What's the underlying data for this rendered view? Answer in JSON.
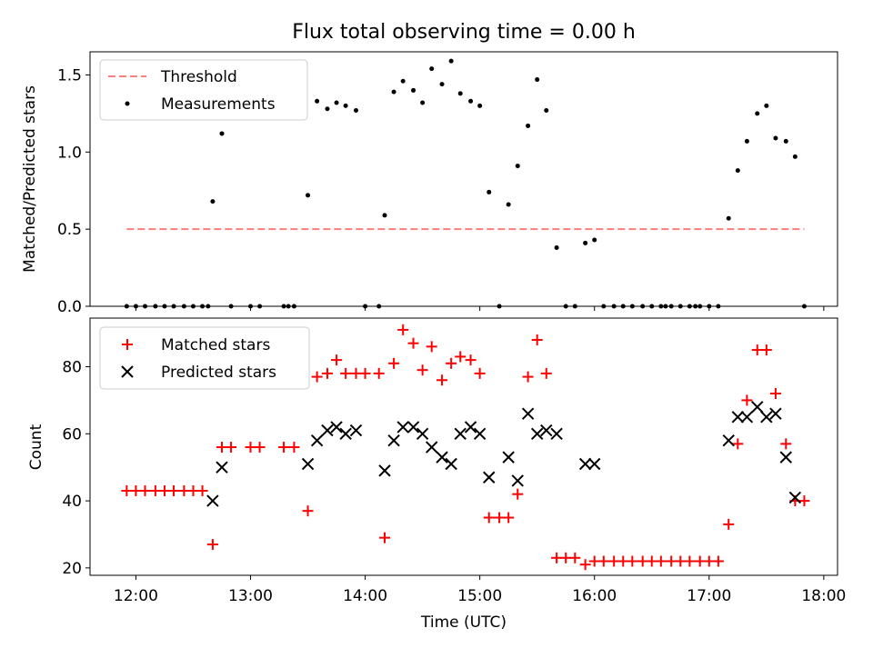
{
  "title": "Flux total observing time = 0.00 h",
  "colors": {
    "threshold": "#ff7f7f",
    "measurements": "#000000",
    "matched": "#ff0000",
    "predicted": "#000000"
  },
  "chart_data": [
    {
      "type": "scatter",
      "panel": "top",
      "ylabel": "Matched/Predicted stars",
      "xlim": [
        11.6,
        18.12
      ],
      "ylim": [
        0,
        1.65
      ],
      "yticks": [
        0.0,
        0.5,
        1.0,
        1.5
      ],
      "ytick_labels": [
        "0.0",
        "0.5",
        "1.0",
        "1.5"
      ],
      "legend_position": "top-left",
      "threshold": {
        "name": "Threshold",
        "y": 0.5,
        "x_range": [
          11.92,
          17.83
        ],
        "style": "dashed"
      },
      "measurements": {
        "name": "Measurements",
        "points": [
          [
            11.92,
            0
          ],
          [
            12.0,
            0
          ],
          [
            12.08,
            0
          ],
          [
            12.17,
            0
          ],
          [
            12.25,
            0
          ],
          [
            12.33,
            0
          ],
          [
            12.42,
            0
          ],
          [
            12.5,
            0
          ],
          [
            12.58,
            0
          ],
          [
            12.63,
            0
          ],
          [
            12.67,
            0.68
          ],
          [
            12.75,
            1.12
          ],
          [
            12.83,
            0
          ],
          [
            13.0,
            0
          ],
          [
            13.08,
            0
          ],
          [
            13.29,
            0
          ],
          [
            13.33,
            0
          ],
          [
            13.38,
            0
          ],
          [
            13.5,
            0.72
          ],
          [
            13.58,
            1.33
          ],
          [
            13.67,
            1.28
          ],
          [
            13.75,
            1.32
          ],
          [
            13.83,
            1.3
          ],
          [
            13.92,
            1.27
          ],
          [
            14.0,
            0
          ],
          [
            14.12,
            0
          ],
          [
            14.17,
            0.59
          ],
          [
            14.25,
            1.39
          ],
          [
            14.33,
            1.46
          ],
          [
            14.42,
            1.4
          ],
          [
            14.5,
            1.32
          ],
          [
            14.58,
            1.54
          ],
          [
            14.67,
            1.44
          ],
          [
            14.75,
            1.59
          ],
          [
            14.83,
            1.38
          ],
          [
            14.92,
            1.33
          ],
          [
            15.0,
            1.3
          ],
          [
            15.08,
            0.74
          ],
          [
            15.17,
            0
          ],
          [
            15.25,
            0.66
          ],
          [
            15.33,
            0.91
          ],
          [
            15.42,
            1.17
          ],
          [
            15.5,
            1.47
          ],
          [
            15.58,
            1.27
          ],
          [
            15.67,
            0.38
          ],
          [
            15.75,
            0
          ],
          [
            15.83,
            0
          ],
          [
            15.92,
            0.41
          ],
          [
            16.0,
            0.43
          ],
          [
            16.08,
            0
          ],
          [
            16.17,
            0
          ],
          [
            16.25,
            0
          ],
          [
            16.33,
            0
          ],
          [
            16.42,
            0
          ],
          [
            16.5,
            0
          ],
          [
            16.58,
            0
          ],
          [
            16.62,
            0
          ],
          [
            16.67,
            0
          ],
          [
            16.75,
            0
          ],
          [
            16.83,
            0
          ],
          [
            16.88,
            0
          ],
          [
            16.92,
            0
          ],
          [
            17.0,
            0
          ],
          [
            17.08,
            0
          ],
          [
            17.17,
            0.57
          ],
          [
            17.25,
            0.88
          ],
          [
            17.33,
            1.07
          ],
          [
            17.42,
            1.25
          ],
          [
            17.5,
            1.3
          ],
          [
            17.58,
            1.09
          ],
          [
            17.67,
            1.07
          ],
          [
            17.75,
            0.97
          ],
          [
            17.83,
            0
          ]
        ]
      }
    },
    {
      "type": "scatter",
      "panel": "bottom",
      "xlabel": "Time (UTC)",
      "ylabel": "Count",
      "xlim": [
        11.6,
        18.12
      ],
      "ylim": [
        17.8,
        94.5
      ],
      "xticks": [
        12,
        13,
        14,
        15,
        16,
        17,
        18
      ],
      "xtick_labels": [
        "12:00",
        "13:00",
        "14:00",
        "15:00",
        "16:00",
        "17:00",
        "18:00"
      ],
      "yticks": [
        20,
        40,
        60,
        80
      ],
      "ytick_labels": [
        "20",
        "40",
        "60",
        "80"
      ],
      "legend_position": "top-left",
      "series": [
        {
          "name": "Matched stars",
          "marker": "+",
          "points": [
            [
              11.92,
              43
            ],
            [
              12.0,
              43
            ],
            [
              12.08,
              43
            ],
            [
              12.17,
              43
            ],
            [
              12.25,
              43
            ],
            [
              12.33,
              43
            ],
            [
              12.42,
              43
            ],
            [
              12.5,
              43
            ],
            [
              12.58,
              43
            ],
            [
              12.67,
              27
            ],
            [
              12.75,
              56
            ],
            [
              12.83,
              56
            ],
            [
              13.0,
              56
            ],
            [
              13.08,
              56
            ],
            [
              13.29,
              56
            ],
            [
              13.38,
              56
            ],
            [
              13.5,
              37
            ],
            [
              13.58,
              77
            ],
            [
              13.67,
              78
            ],
            [
              13.75,
              82
            ],
            [
              13.83,
              78
            ],
            [
              13.92,
              78
            ],
            [
              14.0,
              78
            ],
            [
              14.12,
              78
            ],
            [
              14.17,
              29
            ],
            [
              14.25,
              81
            ],
            [
              14.33,
              91
            ],
            [
              14.42,
              87
            ],
            [
              14.5,
              79
            ],
            [
              14.58,
              86
            ],
            [
              14.67,
              76
            ],
            [
              14.75,
              81
            ],
            [
              14.83,
              83
            ],
            [
              14.92,
              82
            ],
            [
              15.0,
              78
            ],
            [
              15.08,
              35
            ],
            [
              15.17,
              35
            ],
            [
              15.25,
              35
            ],
            [
              15.33,
              42
            ],
            [
              15.42,
              77
            ],
            [
              15.5,
              88
            ],
            [
              15.58,
              78
            ],
            [
              15.67,
              23
            ],
            [
              15.75,
              23
            ],
            [
              15.83,
              23
            ],
            [
              15.92,
              21
            ],
            [
              16.0,
              22
            ],
            [
              16.08,
              22
            ],
            [
              16.17,
              22
            ],
            [
              16.25,
              22
            ],
            [
              16.33,
              22
            ],
            [
              16.42,
              22
            ],
            [
              16.5,
              22
            ],
            [
              16.58,
              22
            ],
            [
              16.67,
              22
            ],
            [
              16.75,
              22
            ],
            [
              16.83,
              22
            ],
            [
              16.92,
              22
            ],
            [
              17.0,
              22
            ],
            [
              17.08,
              22
            ],
            [
              17.17,
              33
            ],
            [
              17.25,
              57
            ],
            [
              17.33,
              70
            ],
            [
              17.42,
              85
            ],
            [
              17.5,
              85
            ],
            [
              17.58,
              72
            ],
            [
              17.67,
              57
            ],
            [
              17.75,
              40
            ],
            [
              17.83,
              40
            ]
          ]
        },
        {
          "name": "Predicted stars",
          "marker": "x",
          "points": [
            [
              12.67,
              40
            ],
            [
              12.75,
              50
            ],
            [
              13.5,
              51
            ],
            [
              13.58,
              58
            ],
            [
              13.67,
              61
            ],
            [
              13.75,
              62
            ],
            [
              13.83,
              60
            ],
            [
              13.92,
              61
            ],
            [
              14.17,
              49
            ],
            [
              14.25,
              58
            ],
            [
              14.33,
              62
            ],
            [
              14.42,
              62
            ],
            [
              14.5,
              60
            ],
            [
              14.58,
              56
            ],
            [
              14.67,
              53
            ],
            [
              14.75,
              51
            ],
            [
              14.83,
              60
            ],
            [
              14.92,
              62
            ],
            [
              15.0,
              60
            ],
            [
              15.08,
              47
            ],
            [
              15.25,
              53
            ],
            [
              15.33,
              46
            ],
            [
              15.42,
              66
            ],
            [
              15.5,
              60
            ],
            [
              15.58,
              61
            ],
            [
              15.67,
              60
            ],
            [
              15.92,
              51
            ],
            [
              16.0,
              51
            ],
            [
              17.17,
              58
            ],
            [
              17.25,
              65
            ],
            [
              17.33,
              65
            ],
            [
              17.42,
              68
            ],
            [
              17.5,
              65
            ],
            [
              17.58,
              66
            ],
            [
              17.67,
              53
            ],
            [
              17.75,
              41
            ]
          ]
        }
      ]
    }
  ]
}
